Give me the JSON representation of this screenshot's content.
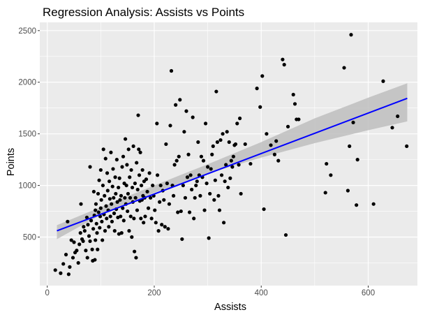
{
  "chart_data": {
    "type": "scatter",
    "title": "Regression Analysis: Assists vs Points",
    "xlabel": "Assists",
    "ylabel": "Points",
    "xlim": [
      -14,
      692
    ],
    "ylim": [
      30,
      2580
    ],
    "x_ticks": [
      0,
      200,
      400,
      600
    ],
    "y_ticks": [
      500,
      1000,
      1500,
      2000,
      2500
    ],
    "grid": true,
    "legend": "none",
    "colors": {
      "panel": "#EBEBEB",
      "grid": "#FFFFFF",
      "points": "#000000",
      "fit_line": "#0000FF",
      "confidence_band": "#BEBEBE"
    },
    "regression": {
      "x_range": [
        18,
        673
      ],
      "intercept": 525,
      "slope": 1.96,
      "ci_lower": [
        [
          18,
          480
        ],
        [
          100,
          715
        ],
        [
          200,
          930
        ],
        [
          300,
          1115
        ],
        [
          400,
          1270
        ],
        [
          500,
          1410
        ],
        [
          600,
          1535
        ],
        [
          673,
          1620
        ]
      ],
      "ci_upper": [
        [
          18,
          615
        ],
        [
          100,
          790
        ],
        [
          200,
          1000
        ],
        [
          300,
          1205
        ],
        [
          400,
          1420
        ],
        [
          500,
          1650
        ],
        [
          600,
          1850
        ],
        [
          673,
          1990
        ]
      ]
    },
    "points": [
      [
        15,
        180
      ],
      [
        25,
        150
      ],
      [
        30,
        240
      ],
      [
        35,
        330
      ],
      [
        40,
        140
      ],
      [
        38,
        650
      ],
      [
        42,
        210
      ],
      [
        45,
        470
      ],
      [
        48,
        300
      ],
      [
        50,
        450
      ],
      [
        52,
        350
      ],
      [
        55,
        370
      ],
      [
        58,
        250
      ],
      [
        60,
        430
      ],
      [
        62,
        540
      ],
      [
        63,
        820
      ],
      [
        65,
        480
      ],
      [
        67,
        460
      ],
      [
        68,
        600
      ],
      [
        70,
        560
      ],
      [
        72,
        370
      ],
      [
        74,
        690
      ],
      [
        75,
        300
      ],
      [
        76,
        620
      ],
      [
        78,
        510
      ],
      [
        80,
        1180
      ],
      [
        80,
        460
      ],
      [
        82,
        660
      ],
      [
        84,
        380
      ],
      [
        85,
        270
      ],
      [
        86,
        580
      ],
      [
        87,
        940
      ],
      [
        88,
        710
      ],
      [
        89,
        280
      ],
      [
        90,
        760
      ],
      [
        90,
        470
      ],
      [
        91,
        820
      ],
      [
        92,
        630
      ],
      [
        93,
        540
      ],
      [
        94,
        380
      ],
      [
        95,
        920
      ],
      [
        96,
        740
      ],
      [
        97,
        1050
      ],
      [
        98,
        590
      ],
      [
        99,
        700
      ],
      [
        100,
        1150
      ],
      [
        100,
        780
      ],
      [
        101,
        860
      ],
      [
        102,
        650
      ],
      [
        103,
        470
      ],
      [
        104,
        1000
      ],
      [
        105,
        1350
      ],
      [
        106,
        720
      ],
      [
        107,
        900
      ],
      [
        108,
        560
      ],
      [
        109,
        1260
      ],
      [
        110,
        800
      ],
      [
        111,
        680
      ],
      [
        112,
        1120
      ],
      [
        113,
        950
      ],
      [
        114,
        760
      ],
      [
        115,
        600
      ],
      [
        116,
        1040
      ],
      [
        117,
        870
      ],
      [
        118,
        700
      ],
      [
        119,
        1320
      ],
      [
        120,
        820
      ],
      [
        121,
        650
      ],
      [
        122,
        990
      ],
      [
        123,
        1160
      ],
      [
        124,
        880
      ],
      [
        125,
        730
      ],
      [
        126,
        560
      ],
      [
        127,
        1080
      ],
      [
        128,
        920
      ],
      [
        129,
        770
      ],
      [
        130,
        1250
      ],
      [
        131,
        840
      ],
      [
        132,
        690
      ],
      [
        133,
        980
      ],
      [
        134,
        530
      ],
      [
        135,
        1070
      ],
      [
        136,
        860
      ],
      [
        137,
        700
      ],
      [
        138,
        900
      ],
      [
        139,
        540
      ],
      [
        140,
        1180
      ],
      [
        141,
        780
      ],
      [
        142,
        1280
      ],
      [
        143,
        660
      ],
      [
        144,
        1020
      ],
      [
        145,
        880
      ],
      [
        146,
        1450
      ],
      [
        147,
        820
      ],
      [
        148,
        1000
      ],
      [
        149,
        1200
      ],
      [
        150,
        750
      ],
      [
        151,
        920
      ],
      [
        152,
        1350
      ],
      [
        153,
        560
      ],
      [
        154,
        1080
      ],
      [
        155,
        880
      ],
      [
        156,
        700
      ],
      [
        157,
        1150
      ],
      [
        158,
        500
      ],
      [
        159,
        980
      ],
      [
        160,
        840
      ],
      [
        161,
        1380
      ],
      [
        162,
        680
      ],
      [
        163,
        360
      ],
      [
        164,
        1020
      ],
      [
        165,
        880
      ],
      [
        166,
        300
      ],
      [
        167,
        1220
      ],
      [
        168,
        760
      ],
      [
        169,
        960
      ],
      [
        170,
        1680
      ],
      [
        171,
        1350
      ],
      [
        172,
        1100
      ],
      [
        173,
        850
      ],
      [
        174,
        1320
      ],
      [
        175,
        680
      ],
      [
        176,
        1000
      ],
      [
        177,
        860
      ],
      [
        178,
        1150
      ],
      [
        179,
        900
      ],
      [
        180,
        640
      ],
      [
        181,
        1040
      ],
      [
        182,
        880
      ],
      [
        183,
        700
      ],
      [
        185,
        1060
      ],
      [
        187,
        940
      ],
      [
        189,
        780
      ],
      [
        191,
        1120
      ],
      [
        193,
        880
      ],
      [
        195,
        680
      ],
      [
        197,
        1000
      ],
      [
        199,
        900
      ],
      [
        201,
        760
      ],
      [
        203,
        640
      ],
      [
        205,
        1600
      ],
      [
        206,
        1100
      ],
      [
        208,
        560
      ],
      [
        210,
        840
      ],
      [
        212,
        1000
      ],
      [
        214,
        620
      ],
      [
        216,
        950
      ],
      [
        218,
        860
      ],
      [
        220,
        600
      ],
      [
        222,
        1400
      ],
      [
        224,
        1020
      ],
      [
        226,
        580
      ],
      [
        228,
        820
      ],
      [
        230,
        1580
      ],
      [
        232,
        2110
      ],
      [
        234,
        1000
      ],
      [
        236,
        900
      ],
      [
        238,
        1200
      ],
      [
        240,
        1780
      ],
      [
        242,
        1240
      ],
      [
        244,
        740
      ],
      [
        246,
        1280
      ],
      [
        248,
        1830
      ],
      [
        250,
        750
      ],
      [
        252,
        480
      ],
      [
        254,
        1000
      ],
      [
        256,
        1520
      ],
      [
        258,
        880
      ],
      [
        260,
        1720
      ],
      [
        262,
        1080
      ],
      [
        264,
        1300
      ],
      [
        266,
        740
      ],
      [
        268,
        1100
      ],
      [
        270,
        960
      ],
      [
        272,
        1660
      ],
      [
        274,
        680
      ],
      [
        276,
        880
      ],
      [
        278,
        1000
      ],
      [
        280,
        1040
      ],
      [
        282,
        1420
      ],
      [
        284,
        1100
      ],
      [
        286,
        900
      ],
      [
        288,
        1280
      ],
      [
        290,
        1080
      ],
      [
        292,
        1240
      ],
      [
        294,
        760
      ],
      [
        296,
        1600
      ],
      [
        298,
        1020
      ],
      [
        300,
        1180
      ],
      [
        302,
        490
      ],
      [
        304,
        920
      ],
      [
        306,
        1160
      ],
      [
        308,
        1300
      ],
      [
        310,
        1380
      ],
      [
        312,
        860
      ],
      [
        314,
        1050
      ],
      [
        316,
        1910
      ],
      [
        318,
        1420
      ],
      [
        320,
        900
      ],
      [
        322,
        760
      ],
      [
        324,
        1440
      ],
      [
        326,
        1100
      ],
      [
        328,
        1500
      ],
      [
        330,
        640
      ],
      [
        332,
        1040
      ],
      [
        334,
        1200
      ],
      [
        336,
        1520
      ],
      [
        338,
        980
      ],
      [
        340,
        1420
      ],
      [
        342,
        1070
      ],
      [
        344,
        1240
      ],
      [
        346,
        1180
      ],
      [
        348,
        1280
      ],
      [
        350,
        1390
      ],
      [
        352,
        1400
      ],
      [
        355,
        1600
      ],
      [
        358,
        1200
      ],
      [
        360,
        1650
      ],
      [
        362,
        920
      ],
      [
        370,
        1400
      ],
      [
        380,
        1210
      ],
      [
        392,
        1940
      ],
      [
        398,
        1760
      ],
      [
        402,
        2060
      ],
      [
        405,
        770
      ],
      [
        410,
        1500
      ],
      [
        418,
        1390
      ],
      [
        425,
        1300
      ],
      [
        428,
        1430
      ],
      [
        432,
        1240
      ],
      [
        440,
        2220
      ],
      [
        443,
        2170
      ],
      [
        446,
        520
      ],
      [
        450,
        1570
      ],
      [
        460,
        1880
      ],
      [
        463,
        1790
      ],
      [
        466,
        1640
      ],
      [
        470,
        1640
      ],
      [
        520,
        930
      ],
      [
        522,
        1210
      ],
      [
        530,
        1100
      ],
      [
        555,
        2140
      ],
      [
        562,
        950
      ],
      [
        565,
        1380
      ],
      [
        568,
        2460
      ],
      [
        572,
        1610
      ],
      [
        578,
        810
      ],
      [
        580,
        1250
      ],
      [
        610,
        820
      ],
      [
        628,
        2010
      ],
      [
        645,
        1560
      ],
      [
        655,
        1670
      ],
      [
        672,
        1380
      ]
    ]
  }
}
